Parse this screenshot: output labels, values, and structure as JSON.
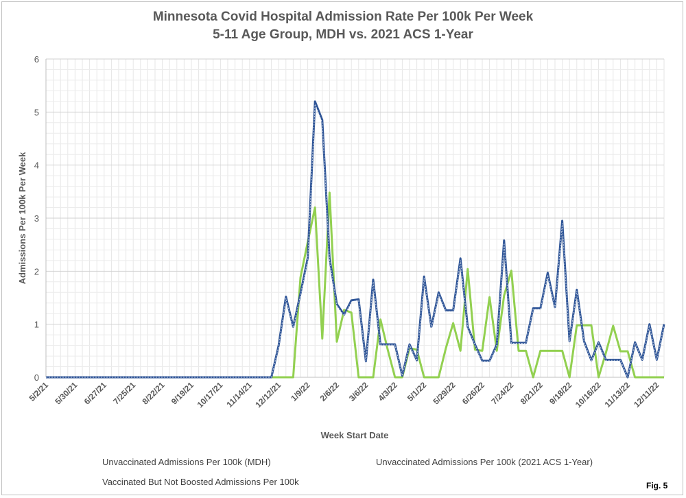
{
  "chart_data": {
    "type": "line",
    "title": "Minnesota Covid Hospital Admission Rate Per 100k Per Week",
    "subtitle": "5-11 Age Group, MDH vs. 2021 ACS 1-Year",
    "xlabel": "Week Start Date",
    "ylabel": "Admissions Per 100k Per Week",
    "ylim": [
      0,
      6
    ],
    "yticks": [
      "0",
      "1",
      "2",
      "3",
      "4",
      "5",
      "6"
    ],
    "x_start": "5/2/21",
    "x_tick_labels": [
      "5/2/21",
      "5/30/21",
      "6/27/21",
      "7/25/21",
      "8/22/21",
      "9/19/21",
      "10/17/21",
      "11/14/21",
      "12/12/21",
      "1/9/22",
      "2/6/22",
      "3/6/22",
      "4/3/22",
      "5/1/22",
      "5/29/22",
      "6/26/22",
      "7/24/22",
      "8/21/22",
      "9/18/22",
      "10/16/22",
      "11/13/22",
      "12/11/22"
    ],
    "grid": true,
    "legend_position": "bottom",
    "series": [
      {
        "name": "Unvaccinated Admissions Per 100k (MDH)",
        "color": "#2f5597",
        "style": "solid",
        "values": [
          0,
          0,
          0,
          0,
          0,
          0,
          0,
          0,
          0,
          0,
          0,
          0,
          0,
          0,
          0,
          0,
          0,
          0,
          0,
          0,
          0,
          0,
          0,
          0,
          0,
          0,
          0,
          0,
          0,
          0,
          0,
          0,
          0.6,
          1.52,
          0.95,
          1.58,
          2.25,
          5.2,
          4.85,
          2.25,
          1.38,
          1.18,
          1.45,
          1.47,
          0.3,
          1.84,
          0.62,
          0.62,
          0.62,
          0.03,
          0.62,
          0.32,
          1.9,
          0.95,
          1.6,
          1.26,
          1.26,
          2.24,
          0.95,
          0.62,
          0.31,
          0.31,
          0.62,
          2.58,
          0.65,
          0.65,
          0.65,
          1.3,
          1.3,
          1.97,
          1.32,
          2.95,
          0.68,
          1.65,
          0.68,
          0.32,
          0.66,
          0.33,
          0.33,
          0.33,
          0.0,
          0.66,
          0.33,
          1.0,
          0.33,
          1.0
        ]
      },
      {
        "name": "Unvaccinated Admissions Per 100k (2021 ACS 1-Year)",
        "color": "#2f5597",
        "style": "dotted",
        "values": [
          0,
          0,
          0,
          0,
          0,
          0,
          0,
          0,
          0,
          0,
          0,
          0,
          0,
          0,
          0,
          0,
          0,
          0,
          0,
          0,
          0,
          0,
          0,
          0,
          0,
          0,
          0,
          0,
          0,
          0,
          0,
          0,
          0.58,
          1.49,
          0.93,
          1.55,
          2.21,
          5.15,
          4.8,
          2.21,
          1.35,
          1.16,
          1.42,
          1.45,
          0.29,
          1.8,
          0.61,
          0.61,
          0.61,
          0.03,
          0.61,
          0.31,
          1.87,
          0.93,
          1.57,
          1.24,
          1.24,
          2.2,
          0.93,
          0.61,
          0.3,
          0.3,
          0.61,
          2.53,
          0.64,
          0.64,
          0.64,
          1.28,
          1.28,
          1.93,
          1.3,
          2.9,
          0.67,
          1.62,
          0.67,
          0.31,
          0.65,
          0.32,
          0.32,
          0.32,
          0.0,
          0.65,
          0.32,
          0.98,
          0.32,
          0.98
        ]
      },
      {
        "name": "Vaccinated But Not Boosted Admissions Per 100k",
        "color": "#92d050",
        "style": "solid",
        "values": [
          0,
          0,
          0,
          0,
          0,
          0,
          0,
          0,
          0,
          0,
          0,
          0,
          0,
          0,
          0,
          0,
          0,
          0,
          0,
          0,
          0,
          0,
          0,
          0,
          0,
          0,
          0,
          0,
          0,
          0,
          0,
          0,
          0,
          0,
          0,
          1.88,
          2.55,
          3.2,
          0.73,
          3.48,
          0.67,
          1.27,
          1.22,
          0,
          0,
          0,
          1.09,
          0.52,
          0,
          0,
          0.55,
          0.52,
          0,
          0,
          0,
          0.55,
          1.02,
          0.5,
          2.04,
          0.52,
          0.5,
          1.51,
          0.5,
          1.54,
          2.01,
          0.5,
          0.5,
          0,
          0.5,
          0.5,
          0.5,
          0.5,
          0,
          0.98,
          0.98,
          0.98,
          0,
          0.46,
          0.97,
          0.49,
          0.49,
          0,
          0,
          0,
          0,
          0
        ]
      }
    ]
  },
  "figure_label": "Fig. 5"
}
